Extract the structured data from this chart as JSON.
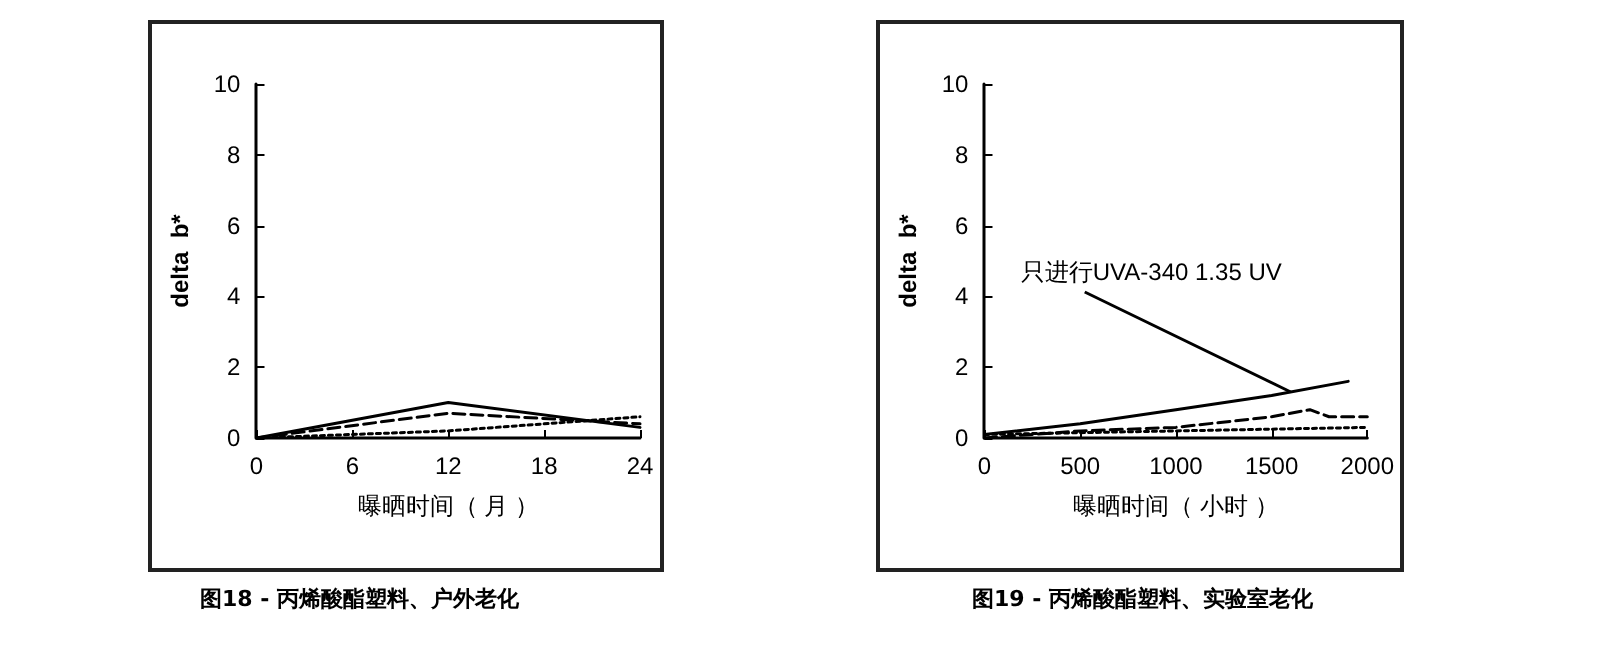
{
  "chart_data": [
    {
      "type": "line",
      "xlabel": "曝晒时间（ 月 ）",
      "ylabel": "delta  b*",
      "annotations": [
        "图18 - 丙烯酸酯塑料、户外老化"
      ],
      "x": [
        0,
        12,
        24
      ],
      "xlim": [
        0,
        24
      ],
      "xticks": [
        0,
        6,
        12,
        18,
        24
      ],
      "ylim": [
        0,
        10
      ],
      "yticks": [
        0,
        2,
        4,
        6,
        8,
        10
      ],
      "marker": "none",
      "series": [
        {
          "color": "#000000",
          "line_style": "solid",
          "values": [
            0,
            1.0,
            0.3
          ]
        },
        {
          "color": "#000000",
          "line_style": "dashed",
          "values": [
            0,
            0.7,
            0.4
          ]
        },
        {
          "color": "#000000",
          "line_style": "dotted",
          "values": [
            0,
            0.2,
            0.6
          ]
        }
      ]
    },
    {
      "type": "line",
      "xlabel": "曝晒时间（ 小时 ）",
      "ylabel": "delta  b*",
      "annotations": [
        {
          "text": "只进行UVA-340 1.35 UV",
          "x": 1600,
          "y": 1.3
        },
        "图19 - 丙烯酸酯塑料、实验室老化"
      ],
      "xlim": [
        0,
        2000
      ],
      "xticks": [
        0,
        500,
        1000,
        1500,
        2000
      ],
      "ylim": [
        0,
        10
      ],
      "yticks": [
        0,
        2,
        4,
        6,
        8,
        10
      ],
      "marker": "none",
      "series": [
        {
          "color": "#000000",
          "line_style": "solid",
          "x": [
            0,
            500,
            1000,
            1500,
            1900
          ],
          "values": [
            0.1,
            0.4,
            0.8,
            1.2,
            1.6
          ]
        },
        {
          "color": "#000000",
          "line_style": "dashed",
          "x": [
            0,
            500,
            1000,
            1500,
            1700,
            1800,
            2000
          ],
          "values": [
            0,
            0.2,
            0.3,
            0.6,
            0.8,
            0.6,
            0.6
          ]
        },
        {
          "color": "#000000",
          "line_style": "dotted",
          "x": [
            0,
            1000,
            2000
          ],
          "values": [
            0.1,
            0.2,
            0.3
          ]
        }
      ]
    }
  ]
}
